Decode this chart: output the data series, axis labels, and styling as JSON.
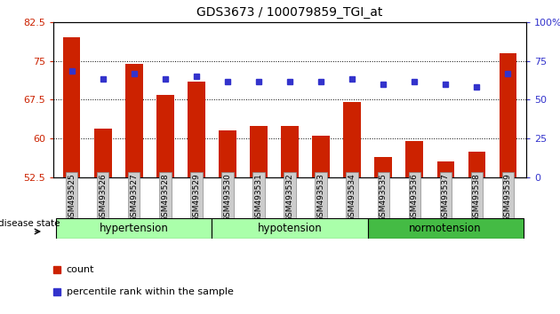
{
  "title": "GDS3673 / 100079859_TGI_at",
  "samples": [
    "GSM493525",
    "GSM493526",
    "GSM493527",
    "GSM493528",
    "GSM493529",
    "GSM493530",
    "GSM493531",
    "GSM493532",
    "GSM493533",
    "GSM493534",
    "GSM493535",
    "GSM493536",
    "GSM493537",
    "GSM493538",
    "GSM493539"
  ],
  "bar_values": [
    79.5,
    62.0,
    74.5,
    68.5,
    71.0,
    61.5,
    62.5,
    62.5,
    60.5,
    67.0,
    56.5,
    59.5,
    55.5,
    57.5,
    76.5
  ],
  "dot_values_left_scale": [
    73.0,
    71.5,
    72.5,
    71.5,
    72.0,
    71.0,
    71.0,
    71.0,
    71.0,
    71.5,
    70.5,
    71.0,
    70.5,
    70.0,
    72.5
  ],
  "ylim_left": [
    52.5,
    82.5
  ],
  "ylim_right": [
    0,
    100
  ],
  "yticks_left": [
    52.5,
    60.0,
    67.5,
    75.0,
    82.5
  ],
  "yticks_right": [
    0,
    25,
    50,
    75,
    100
  ],
  "bar_color": "#cc2200",
  "dot_color": "#3333cc",
  "group_defs": [
    {
      "label": "hypertension",
      "start": 0,
      "end": 4,
      "color": "#aaffaa"
    },
    {
      "label": "hypotension",
      "start": 5,
      "end": 9,
      "color": "#aaffaa"
    },
    {
      "label": "normotension",
      "start": 10,
      "end": 14,
      "color": "#44bb44"
    }
  ]
}
